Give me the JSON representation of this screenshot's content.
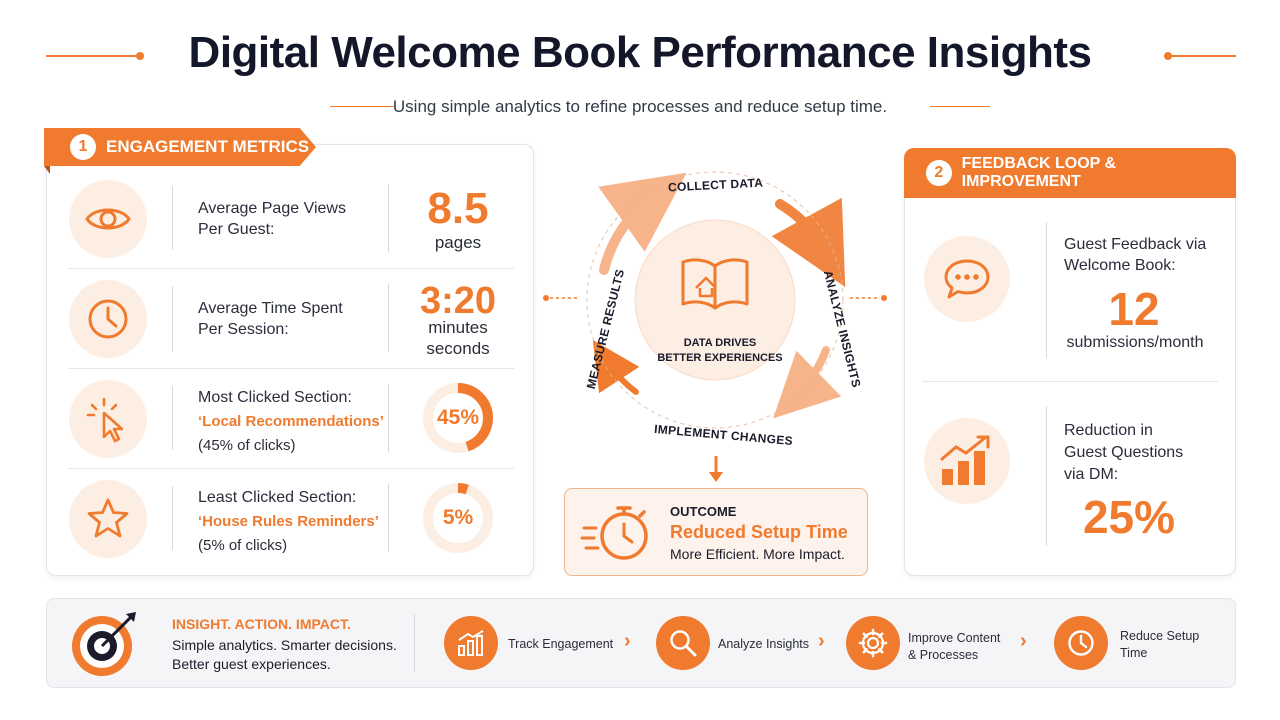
{
  "header": {
    "title": "Digital Welcome Book Performance Insights",
    "subtitle": "Using simple analytics to refine processes and reduce setup time."
  },
  "engagement": {
    "number": "1",
    "heading": "ENGAGEMENT METRICS",
    "metrics": [
      {
        "icon": "eye-icon",
        "label_line1": "Average Page Views",
        "label_line2": "Per Guest:",
        "value": "8.5",
        "unit": "pages"
      },
      {
        "icon": "clock-icon",
        "label_line1": "Average Time Spent",
        "label_line2": "Per Session:",
        "value": "3:20",
        "unit_line1": "minutes",
        "unit_line2": "seconds"
      },
      {
        "icon": "cursor-click-icon",
        "label_line1": "Most Clicked Section:",
        "highlight": "‘Local Recommendations’",
        "note": "(45% of clicks)",
        "value": "45%",
        "fraction": 0.45
      },
      {
        "icon": "star-icon",
        "label_line1": "Least Clicked Section:",
        "highlight": "‘House Rules Reminders’",
        "note": "(5% of clicks)",
        "value": "5%",
        "fraction": 0.05
      }
    ]
  },
  "cycle": {
    "top": "COLLECT DATA",
    "right": "ANALYZE INSIGHTS",
    "bottom": "IMPLEMENT CHANGES",
    "left": "MEASURE RESULTS",
    "center_line1": "DATA DRIVES",
    "center_line2": "BETTER EXPERIENCES",
    "icon": "open-book-icon"
  },
  "outcome": {
    "label": "OUTCOME",
    "title": "Reduced Setup Time",
    "text": "More Efficient. More Impact.",
    "icon": "stopwatch-icon"
  },
  "feedback": {
    "number": "2",
    "heading": "FEEDBACK LOOP & IMPROVEMENT",
    "items": [
      {
        "icon": "chat-bubble-icon",
        "label_line1": "Guest Feedback via",
        "label_line2": "Welcome Book:",
        "value": "12",
        "unit": "submissions/month"
      },
      {
        "icon": "bar-chart-growth-icon",
        "label_line1": "Reduction in",
        "label_line2": "Guest Questions",
        "label_line3": "via DM:",
        "value": "25%"
      }
    ]
  },
  "footer": {
    "icon": "target-icon",
    "heading": "INSIGHT. ACTION. IMPACT.",
    "text_line1": "Simple analytics. Smarter decisions.",
    "text_line2": "Better guest experiences.",
    "steps": [
      {
        "icon": "bar-chart-icon",
        "label_line1": "Track Engagement",
        "label_line2": ""
      },
      {
        "icon": "magnifier-icon",
        "label_line1": "Analyze Insights",
        "label_line2": ""
      },
      {
        "icon": "gear-icon",
        "label_line1": "Improve Content",
        "label_line2": "& Processes"
      },
      {
        "icon": "clock-icon",
        "label_line1": "Reduce Setup",
        "label_line2": "Time"
      }
    ]
  },
  "colors": {
    "accent": "#f07a2e",
    "accent_light": "#fdeee4",
    "text": "#14162a"
  }
}
